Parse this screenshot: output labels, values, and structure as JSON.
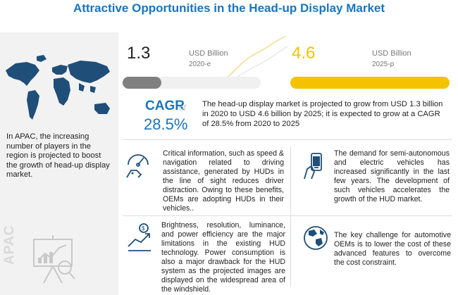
{
  "title": "Attractive Opportunities in the Head-up Display Market",
  "apac": {
    "description": "In APAC, the increasing number of players in the region is projected to boost the growth of head-up display market.",
    "vertical_label": "APAC"
  },
  "stats": [
    {
      "value": "1.3",
      "unit": "USD Billion",
      "year": "2020-e",
      "fill_fraction": 0.28,
      "color": "#808080"
    },
    {
      "value": "4.6",
      "unit": "USD Billion",
      "year": "2025-p",
      "fill_fraction": 1.0,
      "color": "#f5c200"
    }
  ],
  "cagr": {
    "label": "CAGR",
    "of": "of",
    "value": "28.5%"
  },
  "summary": "The head-up display market is projected to grow from USD 1.3 billion in 2020 to USD 4.6 billion by 2025; it is expected to grow at a CAGR of 28.5% from 2020 to 2025",
  "cards": {
    "navigation": "Critical information, such as speed & navigation related to driving assistance, generated by HUDs in the line of sight reduces driver distraction. Owing to these benefits, OEMs are adopting HUDs in their vehicles..",
    "autonomous": "The demand for semi-autonomous and electric vehicles has increased significantly in the last few years. The development of such vehicles accelerates the growth of the HUD market.",
    "limitations": "Brightness, resolution, luminance, and power efficiency are the major limitations in the existing HUD technology. Power consumption is also a major drawback for the HUD system as the projected images are displayed on the widespread area of the windshield.",
    "challenge": "The key challenge for automotive OEMs is to lower the cost of these advanced features to overcome the cost constraint."
  },
  "colors": {
    "accent_blue": "#1a75bc",
    "gold": "#f5c200",
    "gray_bar": "#808080",
    "panel": "#f2f2f2"
  },
  "icons": [
    "world-map-icon",
    "presentation-chart-icon",
    "speedometer-hand-icon",
    "smartphone-hand-icon",
    "growth-chart-icon",
    "globe-icon"
  ]
}
